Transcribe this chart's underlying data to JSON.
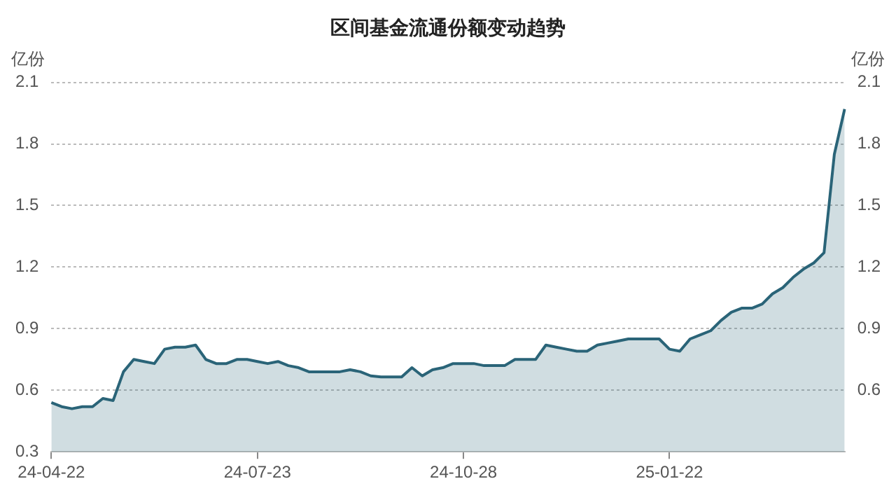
{
  "chart_data": {
    "type": "area",
    "title": "区间基金流通份额变动趋势",
    "ylabel": "亿份",
    "y2label": "亿份",
    "categories": [
      "24-04-22",
      null,
      null,
      null,
      null,
      null,
      null,
      null,
      null,
      null,
      null,
      null,
      null,
      null,
      null,
      null,
      null,
      null,
      null,
      null,
      "24-07-23",
      null,
      null,
      null,
      null,
      null,
      null,
      null,
      null,
      null,
      null,
      null,
      null,
      null,
      null,
      null,
      null,
      null,
      null,
      null,
      "24-10-28",
      null,
      null,
      null,
      null,
      null,
      null,
      null,
      null,
      null,
      null,
      null,
      null,
      null,
      null,
      null,
      null,
      null,
      null,
      null,
      "25-01-22",
      null,
      null,
      null,
      null,
      null,
      null,
      null,
      null,
      null,
      null,
      null,
      null,
      null,
      null,
      null,
      null,
      null
    ],
    "series": [
      {
        "color": "#2a6478",
        "values": [
          0.54,
          0.52,
          0.51,
          0.52,
          0.52,
          0.56,
          0.55,
          0.69,
          0.75,
          0.74,
          0.73,
          0.8,
          0.81,
          0.81,
          0.82,
          0.75,
          0.73,
          0.73,
          0.75,
          0.75,
          0.74,
          0.73,
          0.74,
          0.72,
          0.71,
          0.69,
          0.69,
          0.69,
          0.69,
          0.7,
          0.69,
          0.67,
          0.665,
          0.665,
          0.665,
          0.71,
          0.67,
          0.7,
          0.71,
          0.73,
          0.73,
          0.73,
          0.72,
          0.72,
          0.72,
          0.75,
          0.75,
          0.75,
          0.82,
          0.81,
          0.8,
          0.79,
          0.79,
          0.82,
          0.83,
          0.84,
          0.85,
          0.85,
          0.85,
          0.85,
          0.8,
          0.79,
          0.85,
          0.87,
          0.89,
          0.94,
          0.98,
          1.0,
          1.0,
          1.02,
          1.07,
          1.1,
          1.15,
          1.19,
          1.22,
          1.27,
          1.75,
          1.97
        ]
      }
    ],
    "ylim": [
      0.3,
      2.1
    ],
    "yticks": [
      0.3,
      0.6,
      0.9,
      1.2,
      1.5,
      1.8,
      2.1
    ],
    "y2lim": [
      0.3,
      2.1
    ],
    "y2ticks": [
      0.6,
      0.9,
      1.2,
      1.5,
      1.8,
      2.1
    ],
    "grid": "y",
    "legend": false
  }
}
